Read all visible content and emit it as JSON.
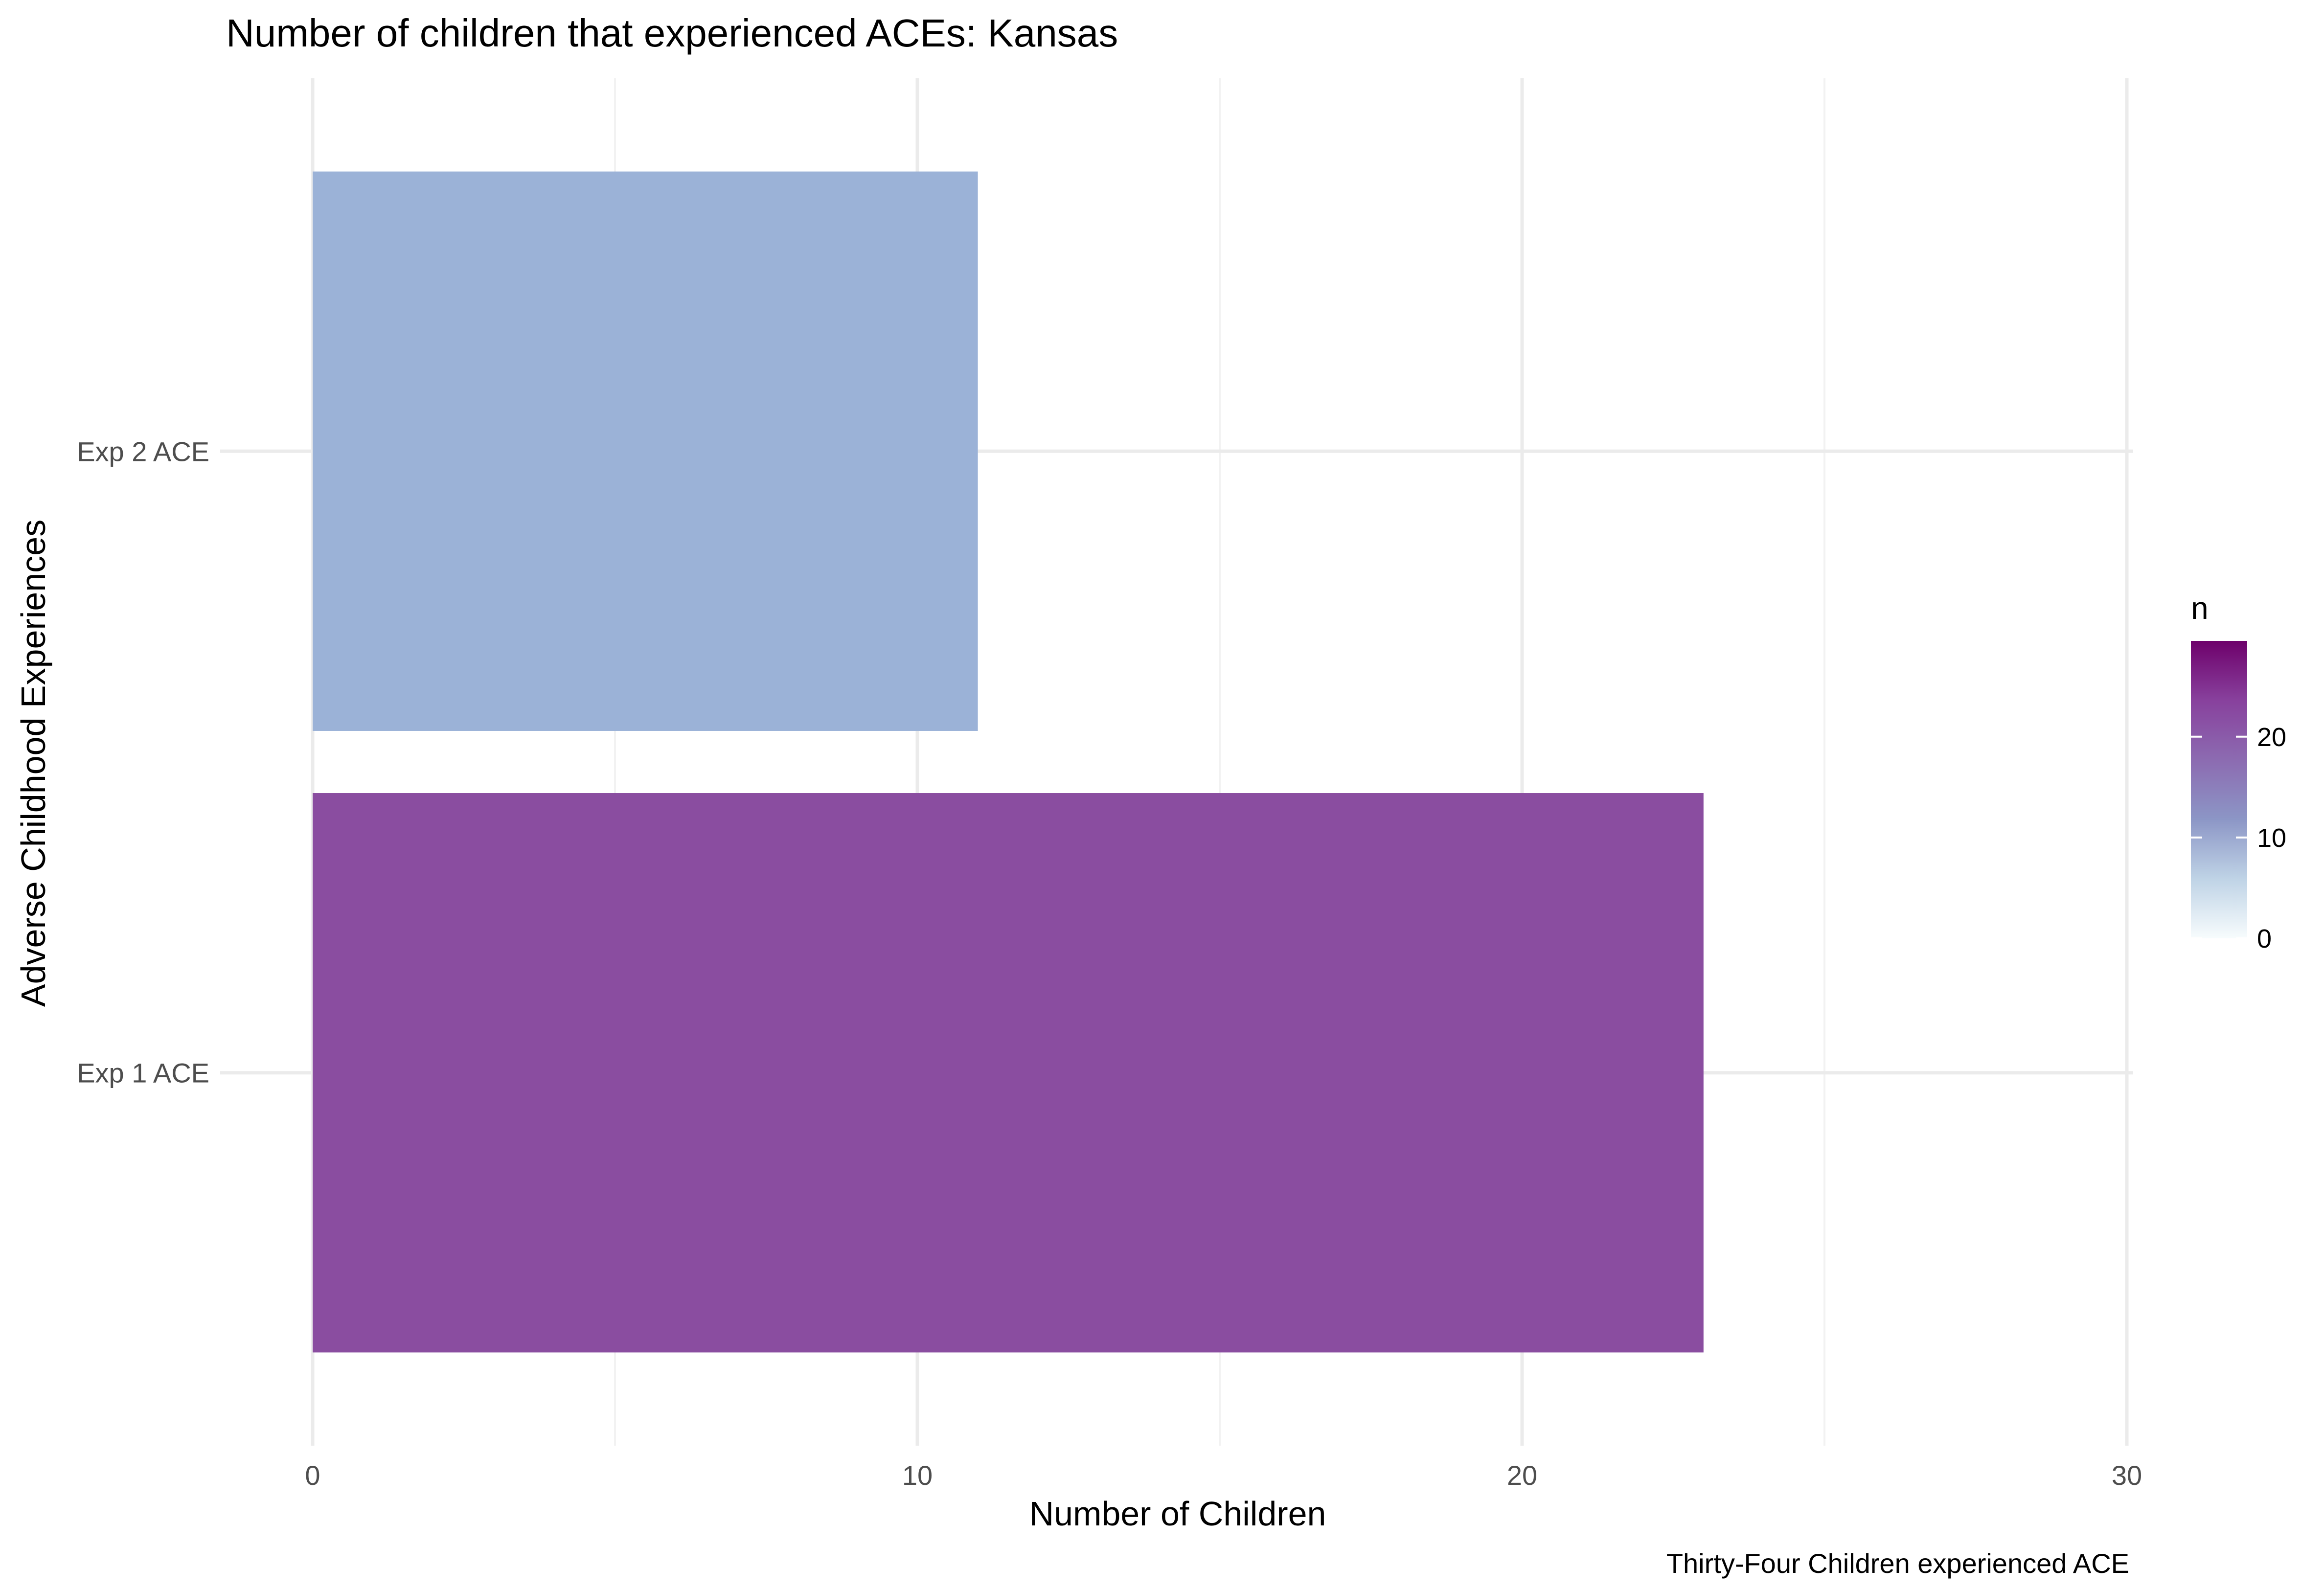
{
  "chart_data": {
    "type": "bar",
    "orientation": "horizontal",
    "title": "Number of children that experienced ACEs: Kansas",
    "xlabel": "Number of Children",
    "ylabel": "Adverse Childhood Experiences",
    "caption": "Thirty-Four Children experienced ACE",
    "categories": [
      "Exp 1 ACE",
      "Exp 2 ACE"
    ],
    "values": [
      23,
      11
    ],
    "bar_colors": [
      "#8a4da0",
      "#9bb2d7"
    ],
    "xlim": [
      0,
      30.4
    ],
    "x_ticks": [
      0,
      10,
      20,
      30
    ],
    "x_tick_labels": [
      "0",
      "10",
      "20",
      "30"
    ],
    "legend": {
      "title": "n",
      "position": "right",
      "range": [
        0,
        29.5
      ],
      "ticks": [
        0,
        10,
        20
      ],
      "tick_labels": [
        "0",
        "10",
        "20"
      ],
      "colors": [
        "#f7fcfd",
        "#bfd3e6",
        "#8c96c6",
        "#8c6bb1",
        "#88419d",
        "#6e016b"
      ]
    },
    "grid": true
  }
}
